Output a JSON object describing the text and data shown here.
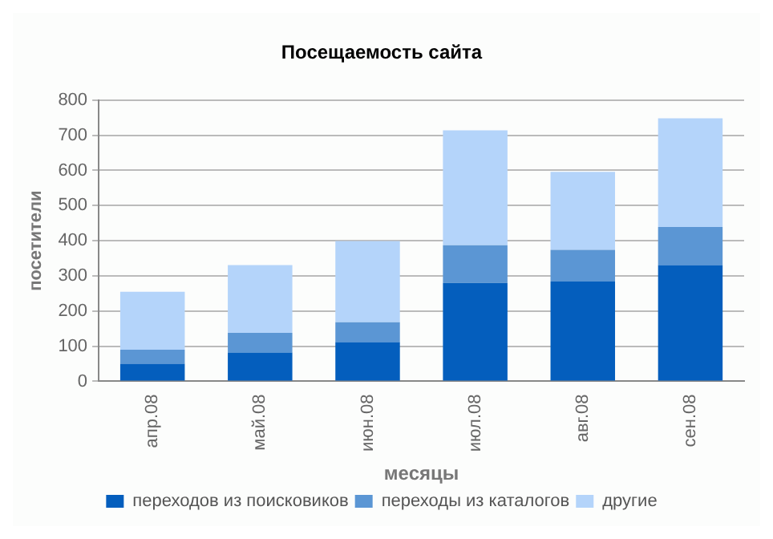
{
  "chart_data": {
    "type": "bar",
    "title": "Посещаемость сайта",
    "xlabel": "месяцы",
    "ylabel": "посетители",
    "categories": [
      "апр.08",
      "май.08",
      "июн.08",
      "июл.08",
      "авг.08",
      "сен.08"
    ],
    "series": [
      {
        "name": "переходов из поисковиков",
        "color": "#045ebd",
        "values": [
          50,
          82,
          112,
          280,
          284,
          331
        ]
      },
      {
        "name": "переходы из каталогов",
        "color": "#5b96d4",
        "values": [
          40,
          56,
          56,
          107,
          90,
          108
        ]
      },
      {
        "name": "другие",
        "color": "#b4d4fa",
        "values": [
          165,
          193,
          231,
          327,
          222,
          309
        ]
      }
    ],
    "stacked": true,
    "ylim": [
      0,
      800
    ],
    "yticks": [
      0,
      100,
      200,
      300,
      400,
      500,
      600,
      700,
      800
    ],
    "grid": "y",
    "legend": "bottom"
  }
}
